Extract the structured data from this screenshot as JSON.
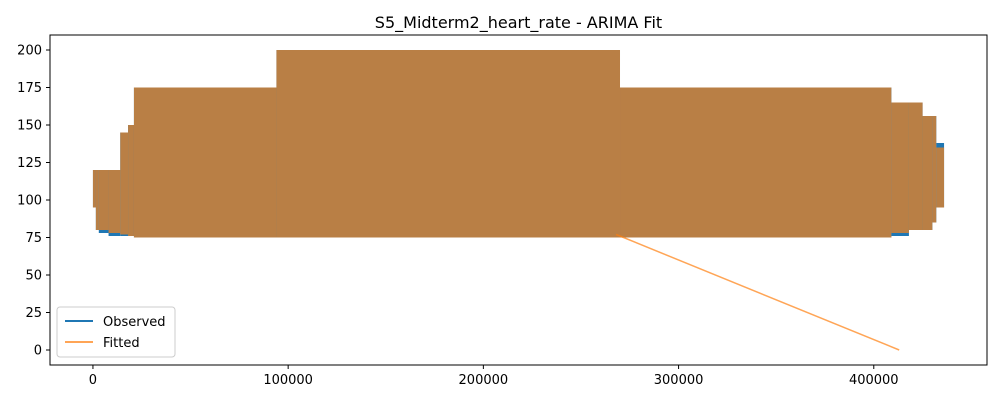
{
  "chart_data": {
    "type": "line",
    "title": "S5_Midterm2_heart_rate - ARIMA Fit",
    "xlabel": "",
    "ylabel": "",
    "xlim": [
      -22000,
      458000
    ],
    "ylim": [
      -10,
      210
    ],
    "x_ticks": [
      0,
      100000,
      200000,
      300000,
      400000
    ],
    "y_ticks": [
      0,
      25,
      50,
      75,
      100,
      125,
      150,
      175,
      200
    ],
    "grid": false,
    "legend_position": "lower-left",
    "series": [
      {
        "name": "Observed",
        "color": "#1f77b4",
        "band_segments": [
          {
            "x0": 0,
            "x1": 1500,
            "low": 95,
            "high": 120
          },
          {
            "x0": 1500,
            "x1": 3000,
            "low": 80,
            "high": 120
          },
          {
            "x0": 3000,
            "x1": 8000,
            "low": 78,
            "high": 120
          },
          {
            "x0": 8000,
            "x1": 14000,
            "low": 76,
            "high": 120
          },
          {
            "x0": 14000,
            "x1": 18000,
            "low": 76,
            "high": 145
          },
          {
            "x0": 18000,
            "x1": 21000,
            "low": 76,
            "high": 150
          },
          {
            "x0": 21000,
            "x1": 94000,
            "low": 75,
            "high": 175
          },
          {
            "x0": 94000,
            "x1": 269000,
            "low": 75,
            "high": 200
          },
          {
            "x0": 269000,
            "x1": 409000,
            "low": 75,
            "high": 175
          },
          {
            "x0": 409000,
            "x1": 418000,
            "low": 76,
            "high": 165
          },
          {
            "x0": 418000,
            "x1": 425000,
            "low": 80,
            "high": 165
          },
          {
            "x0": 425000,
            "x1": 430000,
            "low": 80,
            "high": 156
          },
          {
            "x0": 430000,
            "x1": 432000,
            "low": 85,
            "high": 156
          },
          {
            "x0": 432000,
            "x1": 436000,
            "low": 95,
            "high": 138
          }
        ]
      },
      {
        "name": "Fitted",
        "color": "#ff7f0e",
        "band_color": "#b97f45",
        "band_segments": [
          {
            "x0": 0,
            "x1": 1500,
            "low": 95,
            "high": 120
          },
          {
            "x0": 1500,
            "x1": 3000,
            "low": 80,
            "high": 120
          },
          {
            "x0": 3000,
            "x1": 8000,
            "low": 80,
            "high": 120
          },
          {
            "x0": 8000,
            "x1": 14000,
            "low": 78,
            "high": 120
          },
          {
            "x0": 14000,
            "x1": 18000,
            "low": 77,
            "high": 145
          },
          {
            "x0": 18000,
            "x1": 21000,
            "low": 76,
            "high": 150
          },
          {
            "x0": 21000,
            "x1": 94000,
            "low": 75,
            "high": 175
          },
          {
            "x0": 94000,
            "x1": 270000,
            "low": 75,
            "high": 200
          },
          {
            "x0": 270000,
            "x1": 409000,
            "low": 75,
            "high": 175
          },
          {
            "x0": 409000,
            "x1": 418000,
            "low": 78,
            "high": 165
          },
          {
            "x0": 418000,
            "x1": 425000,
            "low": 80,
            "high": 165
          },
          {
            "x0": 425000,
            "x1": 430000,
            "low": 80,
            "high": 156
          },
          {
            "x0": 430000,
            "x1": 432000,
            "low": 85,
            "high": 156
          },
          {
            "x0": 432000,
            "x1": 436000,
            "low": 95,
            "high": 135
          }
        ],
        "line_points": [
          [
            268000,
            77
          ],
          [
            413000,
            0
          ]
        ]
      }
    ]
  }
}
